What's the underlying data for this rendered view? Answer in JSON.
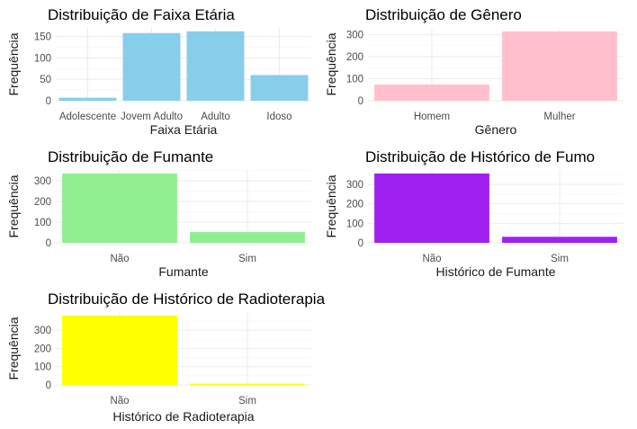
{
  "chart_data": [
    {
      "type": "bar",
      "title": "Distribuição de Faixa Etária",
      "xlabel": "Faixa Etária",
      "ylabel": "Frequência",
      "categories": [
        "Adolescente",
        "Jovem Adulto",
        "Adulto",
        "Idoso"
      ],
      "values": [
        7,
        158,
        162,
        60
      ],
      "ylim": [
        0,
        170
      ],
      "yticks": [
        0,
        50,
        100,
        150
      ],
      "color": "#87CEEB",
      "grid": true,
      "legend": "none"
    },
    {
      "type": "bar",
      "title": "Distribuição de Gênero",
      "xlabel": "Gênero",
      "ylabel": "Frequência",
      "categories": [
        "Homem",
        "Mulher"
      ],
      "values": [
        73,
        314
      ],
      "ylim": [
        0,
        330
      ],
      "yticks": [
        0,
        100,
        200,
        300
      ],
      "color": "#FFC0CB",
      "grid": true,
      "legend": "none"
    },
    {
      "type": "bar",
      "title": "Distribuição de Fumante",
      "xlabel": "Fumante",
      "ylabel": "Frequência",
      "categories": [
        "Não",
        "Sim"
      ],
      "values": [
        335,
        52
      ],
      "ylim": [
        0,
        352
      ],
      "yticks": [
        0,
        100,
        200,
        300
      ],
      "color": "#90EE90",
      "grid": true,
      "legend": "none"
    },
    {
      "type": "bar",
      "title": "Distribuição de Histórico de Fumo",
      "xlabel": "Histórico de Fumante",
      "ylabel": "Frequência",
      "categories": [
        "Não",
        "Sim"
      ],
      "values": [
        356,
        31
      ],
      "ylim": [
        0,
        374
      ],
      "yticks": [
        0,
        100,
        200,
        300
      ],
      "color": "#A020F0",
      "grid": true,
      "legend": "none"
    },
    {
      "type": "bar",
      "title": "Distribuição de Histórico de Radioterapia",
      "xlabel": "Histórico de Radioterapia",
      "ylabel": "Frequência",
      "categories": [
        "Não",
        "Sim"
      ],
      "values": [
        380,
        7
      ],
      "ylim": [
        0,
        399
      ],
      "yticks": [
        0,
        100,
        200,
        300
      ],
      "color": "#FFFF00",
      "grid": true,
      "legend": "none"
    }
  ]
}
